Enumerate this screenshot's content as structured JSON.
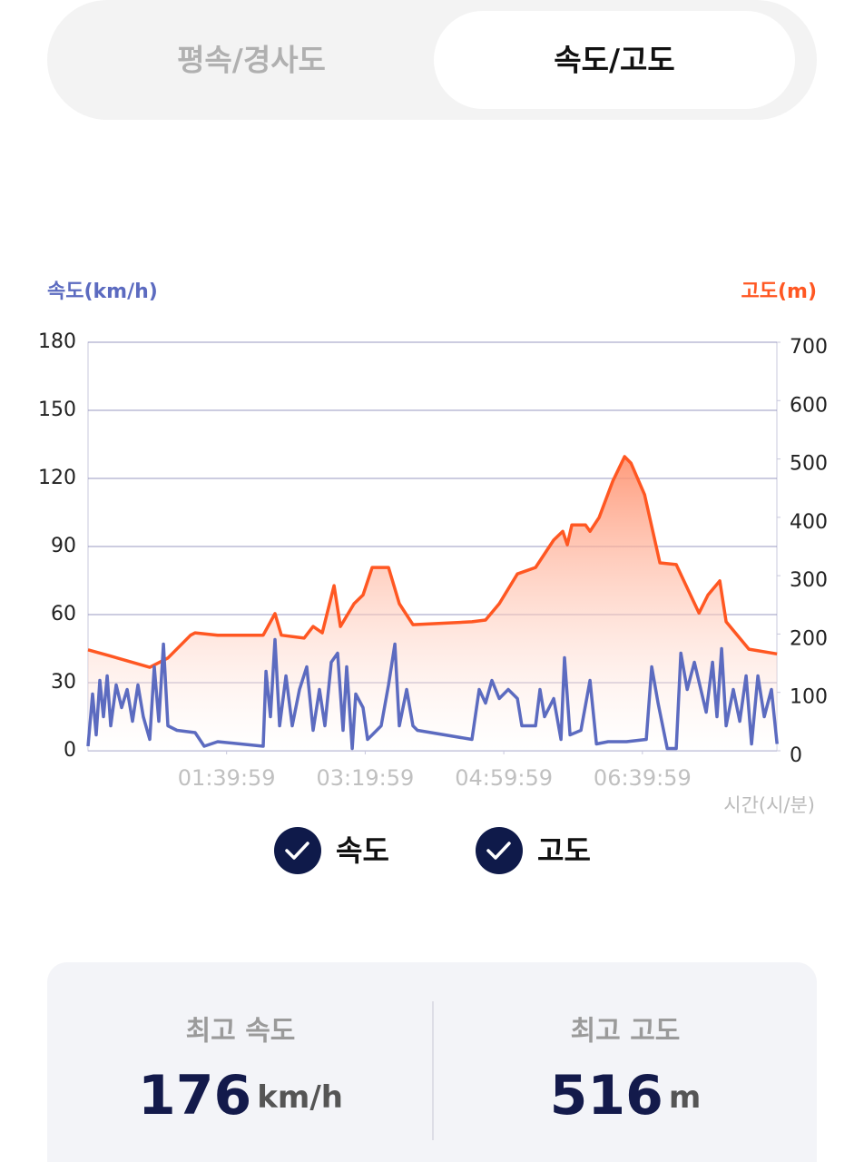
{
  "tabs": [
    "평속/경사도",
    "속도/고도"
  ],
  "chart_data": {
    "type": "line",
    "y_label": "속도(km/h)",
    "y2_label": "고도(m)",
    "x_label": "시간(시/분)",
    "xlim": [
      0,
      497
    ],
    "xticks": [
      {
        "value": 99.98,
        "label": "01:39:59"
      },
      {
        "value": 199.98,
        "label": "03:19:59"
      },
      {
        "value": 299.98,
        "label": "04:59:59"
      },
      {
        "value": 399.98,
        "label": "06:39:59"
      }
    ],
    "ylim": [
      0,
      180
    ],
    "yticks": [
      0,
      30,
      60,
      90,
      120,
      150,
      180
    ],
    "y2lim": [
      0,
      700
    ],
    "y2ticks": [
      0,
      100,
      200,
      300,
      400,
      500,
      600,
      700
    ],
    "grid": true,
    "series": [
      {
        "name": "속도",
        "color": "#5c6bc0",
        "axis": "y",
        "x": [
          0,
          3.3,
          5.9,
          8.5,
          11.1,
          13.8,
          16.4,
          20.3,
          24.2,
          28.2,
          32.1,
          36.0,
          39.9,
          44.5,
          47.8,
          51.1,
          54.4,
          57.6,
          64.2,
          77.3,
          83.8,
          93.6,
          126.4,
          128.4,
          131.6,
          134.9,
          138.2,
          142.8,
          147.3,
          152.6,
          157.8,
          162.4,
          167.0,
          170.9,
          175.5,
          180.1,
          184.0,
          186.6,
          190.6,
          193.2,
          198.4,
          201.7,
          205.0,
          211.5,
          216.8,
          221.4,
          224.6,
          229.9,
          234.4,
          237.7,
          277.0,
          282.2,
          286.8,
          291.4,
          296.7,
          303.2,
          309.8,
          313.0,
          322.9,
          326.1,
          329.4,
          336.0,
          341.2,
          343.8,
          347.8,
          355.6,
          362.2,
          366.8,
          375.3,
          388.4,
          402.8,
          406.7,
          411.3,
          417.9,
          424.4,
          427.7,
          432.3,
          437.5,
          442.1,
          446.0,
          450.6,
          453.8,
          457.1,
          460.4,
          465.6,
          470.2,
          474.8,
          478.7,
          483.3,
          487.9,
          493.1,
          497.1
        ],
        "values": [
          2,
          25,
          7,
          31,
          15,
          33,
          11,
          29,
          19,
          27,
          13,
          29,
          15,
          5,
          37,
          13,
          47,
          11,
          9,
          8,
          2,
          4,
          2,
          35,
          15,
          49,
          11,
          33,
          11,
          27,
          37,
          9,
          27,
          11,
          39,
          43,
          9,
          37,
          1,
          25,
          19,
          5,
          7,
          11,
          29,
          47,
          11,
          27,
          11,
          9,
          5,
          27,
          21,
          31,
          23,
          27,
          23,
          11,
          11,
          27,
          15,
          23,
          5,
          41,
          7,
          9,
          31,
          3,
          4,
          4,
          5,
          37,
          21,
          1,
          1,
          43,
          27,
          39,
          27,
          17,
          39,
          15,
          45,
          11,
          27,
          13,
          33,
          3,
          33,
          15,
          27,
          3
        ]
      },
      {
        "name": "고도",
        "color": "#ff5722",
        "axis": "y2",
        "x": [
          0,
          15.1,
          44.5,
          57.6,
          74.0,
          77.3,
          93.6,
          126.4,
          134.9,
          139.5,
          155.9,
          162.4,
          169.0,
          177.5,
          182.1,
          191.9,
          198.4,
          205.0,
          216.8,
          224.6,
          234.4,
          277.0,
          286.8,
          296.7,
          309.8,
          322.9,
          336.0,
          342.5,
          345.8,
          349.1,
          358.9,
          362.2,
          368.8,
          378.6,
          387.1,
          391.7,
          401.5,
          412.6,
          424.4,
          440.8,
          447.3,
          455.8,
          460.4,
          476.8,
          497.1
        ],
        "values": [
          173,
          163,
          143,
          159,
          198,
          202,
          198,
          198,
          235,
          198,
          193,
          213,
          202,
          283,
          213,
          252,
          267,
          314,
          314,
          252,
          216,
          221,
          224,
          252,
          303,
          314,
          361,
          376,
          353,
          387,
          387,
          376,
          400,
          462,
          504,
          493,
          439,
          322,
          319,
          236,
          267,
          291,
          221,
          174,
          166
        ]
      }
    ]
  },
  "stats": [
    {
      "label": "최고 속도",
      "value": 176,
      "unit": "km/h"
    },
    {
      "label": "최고 고도",
      "value": 516,
      "unit": "m"
    }
  ]
}
